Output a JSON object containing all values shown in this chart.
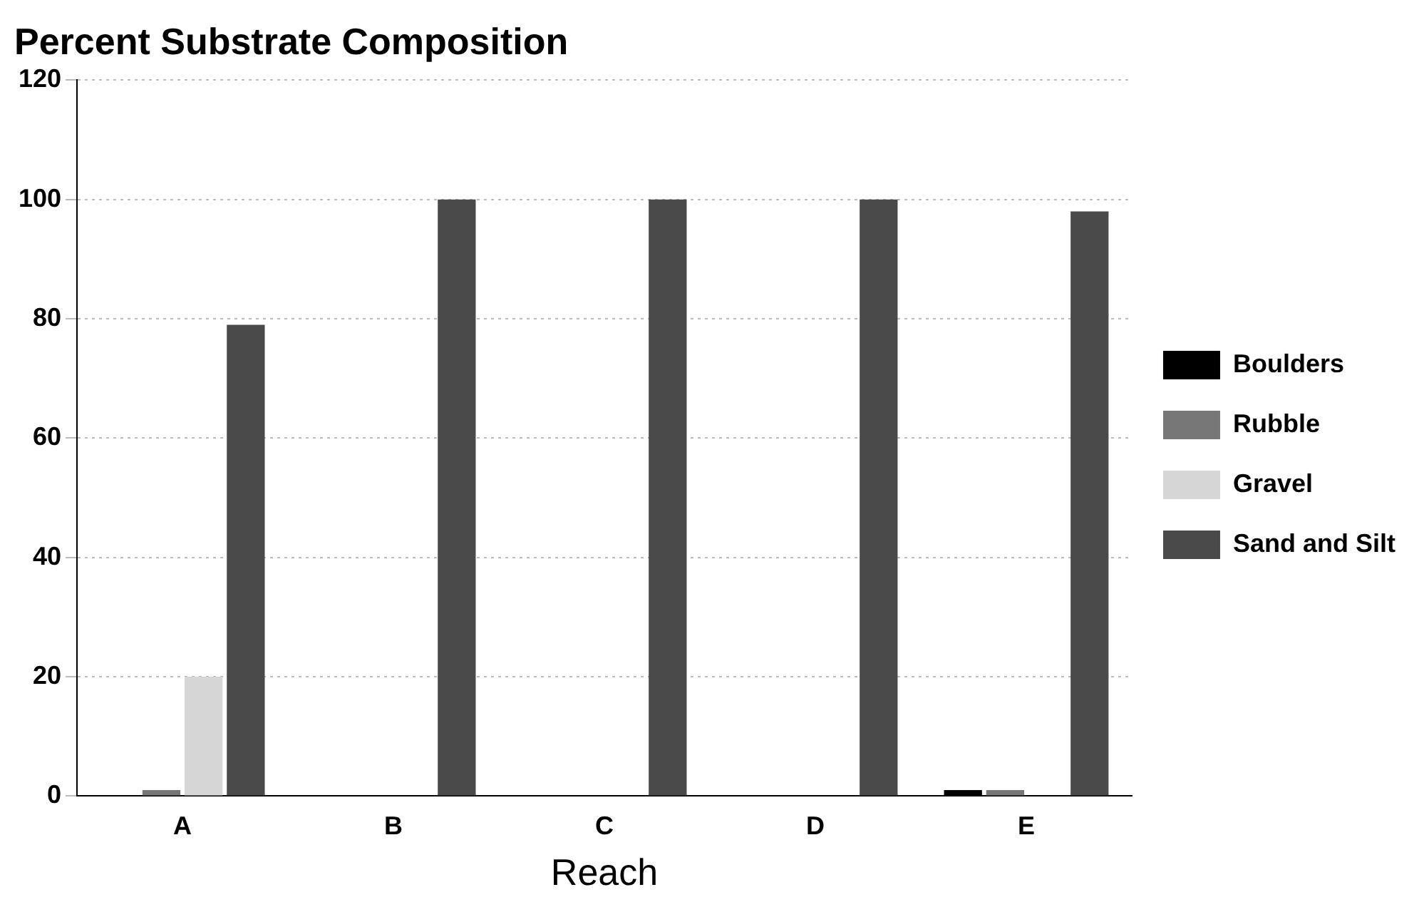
{
  "chart_data": {
    "type": "bar",
    "title": "Percent Substrate Composition",
    "xlabel": "Reach",
    "categories": [
      "A",
      "B",
      "C",
      "D",
      "E"
    ],
    "series": [
      {
        "name": "Boulders",
        "color": "#000000",
        "values": [
          0,
          0,
          0,
          0,
          1
        ]
      },
      {
        "name": "Rubble",
        "color": "#777777",
        "values": [
          1,
          0,
          0,
          0,
          1
        ]
      },
      {
        "name": "Gravel",
        "color": "#d6d6d6",
        "values": [
          20,
          0,
          0,
          0,
          0
        ]
      },
      {
        "name": "Sand and Silt",
        "color": "#4a4a4a",
        "values": [
          79,
          100,
          100,
          100,
          98
        ]
      }
    ],
    "ylim": [
      0,
      120
    ],
    "yticks": [
      0,
      20,
      40,
      60,
      80,
      100,
      120
    ],
    "grid": "y",
    "legend": "right"
  }
}
